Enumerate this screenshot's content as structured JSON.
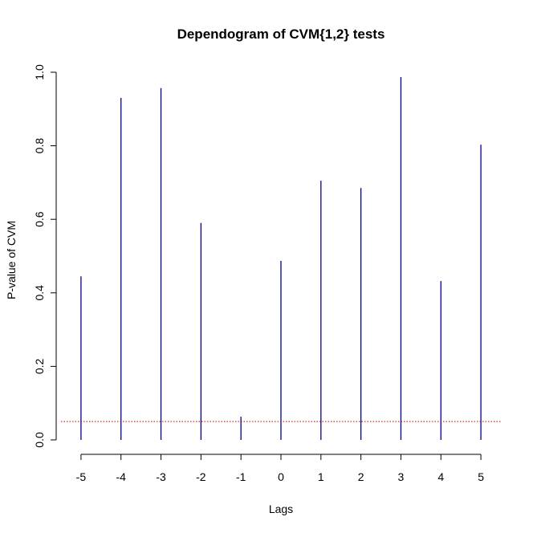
{
  "chart_data": {
    "type": "bar",
    "style": "vertical-lines",
    "title": "Dependogram of CVM{1,2} tests",
    "xlabel": "Lags",
    "ylabel": "P-value of CVM",
    "categories": [
      "-5",
      "-4",
      "-3",
      "-2",
      "-1",
      "0",
      "1",
      "2",
      "3",
      "4",
      "5"
    ],
    "x": [
      -5,
      -4,
      -3,
      -2,
      -1,
      0,
      1,
      2,
      3,
      4,
      5
    ],
    "values": [
      0.445,
      0.93,
      0.957,
      0.59,
      0.063,
      0.487,
      0.705,
      0.685,
      0.987,
      0.432,
      0.803
    ],
    "xlim": [
      -5.5,
      5.5
    ],
    "ylim": [
      0,
      1
    ],
    "x_ticks": [
      "-5",
      "-4",
      "-3",
      "-2",
      "-1",
      "0",
      "1",
      "2",
      "3",
      "4",
      "5"
    ],
    "x_tick_values": [
      -5,
      -4,
      -3,
      -2,
      -1,
      0,
      1,
      2,
      3,
      4,
      5
    ],
    "y_ticks": [
      "0.0",
      "0.2",
      "0.4",
      "0.6",
      "0.8",
      "1.0"
    ],
    "y_tick_values": [
      0,
      0.2,
      0.4,
      0.6,
      0.8,
      1.0
    ],
    "reference_line": {
      "value": 0.05,
      "style": "dotted",
      "color": "#cc0000"
    },
    "bar_color": "#00008b",
    "grid": false,
    "legend": "none"
  }
}
